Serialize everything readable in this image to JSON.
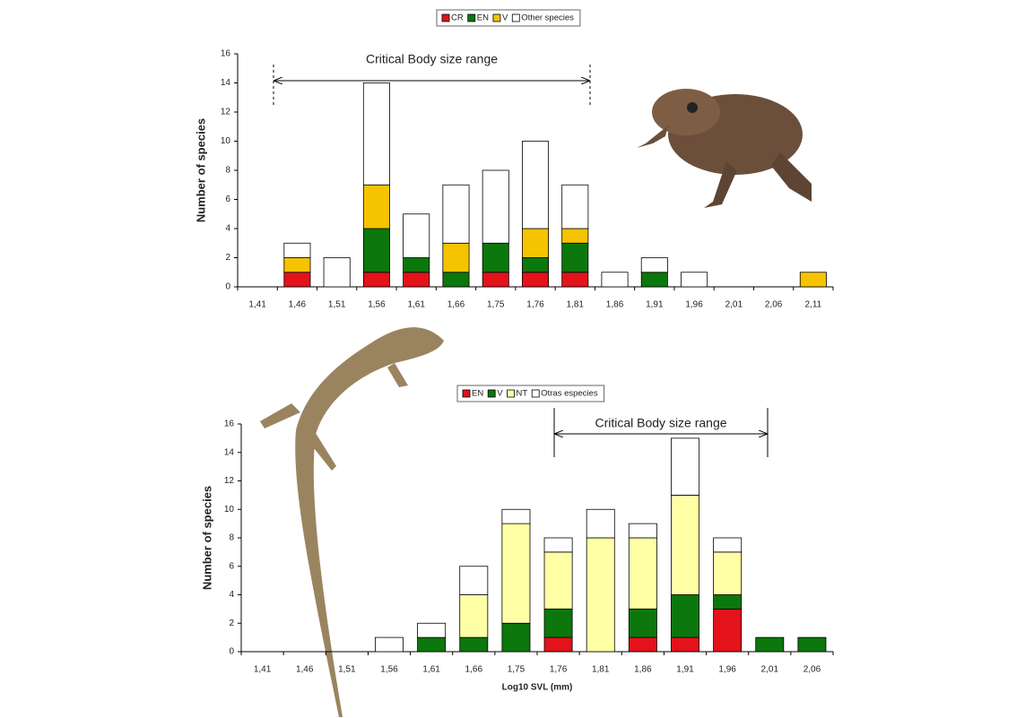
{
  "chart_data": [
    {
      "type": "bar",
      "stacked": true,
      "annotation": "Critical Body size range",
      "ylabel": "Number of species",
      "categories": [
        "1,41",
        "1,46",
        "1,51",
        "1,56",
        "1,61",
        "1,66",
        "1,75",
        "1,76",
        "1,81",
        "1,86",
        "1,91",
        "1,96",
        "2,01",
        "2,06",
        "2,11"
      ],
      "series": [
        {
          "name": "CR",
          "color": "#e3121b",
          "values": [
            0,
            1,
            0,
            1,
            1,
            0,
            1,
            1,
            1,
            0,
            0,
            0,
            0,
            0,
            0
          ]
        },
        {
          "name": "EN",
          "color": "#0c770c",
          "values": [
            0,
            0,
            0,
            3,
            1,
            1,
            2,
            1,
            2,
            0,
            1,
            0,
            0,
            0,
            0
          ]
        },
        {
          "name": "V",
          "color": "#f6c300",
          "values": [
            0,
            1,
            0,
            3,
            0,
            2,
            0,
            2,
            1,
            0,
            0,
            0,
            0,
            0,
            1
          ]
        },
        {
          "name": "Other species",
          "color": "#ffffff",
          "values": [
            0,
            1,
            2,
            7,
            3,
            4,
            5,
            6,
            3,
            1,
            1,
            1,
            0,
            0,
            0
          ]
        }
      ],
      "ylim": [
        0,
        16
      ],
      "yticks": [
        0,
        2,
        4,
        6,
        8,
        10,
        12,
        14,
        16
      ]
    },
    {
      "type": "bar",
      "stacked": true,
      "annotation": "Critical Body size range",
      "ylabel": "Number of species",
      "xlabel": "Log10 SVL (mm)",
      "categories": [
        "1,41",
        "1,46",
        "1,51",
        "1,56",
        "1,61",
        "1,66",
        "1,75",
        "1,76",
        "1,81",
        "1,86",
        "1,91",
        "1,96",
        "2,01",
        "2,06"
      ],
      "series": [
        {
          "name": "EN",
          "color": "#e3121b",
          "values": [
            0,
            0,
            0,
            0,
            0,
            0,
            0,
            1,
            0,
            1,
            1,
            3,
            0,
            0
          ]
        },
        {
          "name": "V",
          "color": "#0c770c",
          "values": [
            0,
            0,
            0,
            0,
            1,
            1,
            2,
            2,
            0,
            2,
            3,
            1,
            1,
            1
          ]
        },
        {
          "name": "NT",
          "color": "#ffffa6",
          "values": [
            0,
            0,
            0,
            0,
            0,
            3,
            7,
            4,
            8,
            5,
            7,
            3,
            0,
            0
          ]
        },
        {
          "name": "Otras especies",
          "color": "#ffffff",
          "values": [
            0,
            0,
            0,
            1,
            1,
            2,
            1,
            1,
            2,
            1,
            4,
            1,
            0,
            0
          ]
        }
      ],
      "ylim": [
        0,
        16
      ],
      "yticks": [
        0,
        2,
        4,
        6,
        8,
        10,
        12,
        14,
        16
      ]
    }
  ]
}
